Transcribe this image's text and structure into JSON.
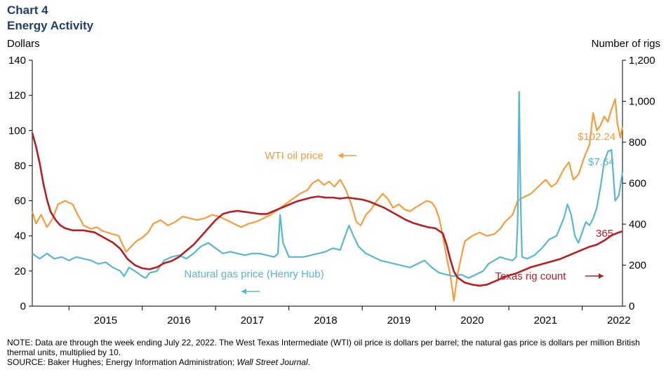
{
  "header": {
    "chart_number": "Chart 4",
    "title": "Energy Activity",
    "left_unit": "Dollars",
    "right_unit": "Number of rigs"
  },
  "footer": {
    "note": "NOTE: Data are through the week ending July 22, 2022. The West Texas Intermediate (WTI) oil price is dollars per barrel; the natural gas price is dollars per million British thermal units, multiplied by 10.",
    "source_prefix": "SOURCE: Baker Hughes; Energy Information  Administration; ",
    "source_italic": "Wall Street Journal",
    "source_suffix": "."
  },
  "chart_data": {
    "type": "line",
    "x_unit": "year",
    "x_range": [
      2014.5,
      2022.55
    ],
    "x_tick_labels": [
      "2015",
      "2016",
      "2017",
      "2018",
      "2019",
      "2020",
      "2021",
      "2022"
    ],
    "y_left": {
      "label": "Dollars",
      "range": [
        0,
        140
      ],
      "ticks": [
        "0",
        "20",
        "40",
        "60",
        "80",
        "100",
        "120",
        "140"
      ]
    },
    "y_right": {
      "label": "Number of rigs",
      "range": [
        0,
        1200
      ],
      "ticks": [
        "0",
        "200",
        "400",
        "600",
        "800",
        "1,000",
        "1,200"
      ]
    },
    "grid": false,
    "series": [
      {
        "name": "WTI oil price",
        "axis": "left",
        "color": "#f59d3d",
        "end_label": "$102.24",
        "arrow": "left",
        "points": [
          [
            2014.5,
            54
          ],
          [
            2014.55,
            47
          ],
          [
            2014.62,
            52
          ],
          [
            2014.7,
            45
          ],
          [
            2014.78,
            50
          ],
          [
            2014.85,
            58
          ],
          [
            2014.95,
            60
          ],
          [
            2015.05,
            58
          ],
          [
            2015.12,
            52
          ],
          [
            2015.2,
            46
          ],
          [
            2015.3,
            44
          ],
          [
            2015.38,
            45
          ],
          [
            2015.45,
            43
          ],
          [
            2015.52,
            42
          ],
          [
            2015.6,
            41
          ],
          [
            2015.68,
            40
          ],
          [
            2015.72,
            36
          ],
          [
            2015.78,
            31
          ],
          [
            2015.85,
            34
          ],
          [
            2015.92,
            37
          ],
          [
            2016.0,
            39
          ],
          [
            2016.08,
            42
          ],
          [
            2016.15,
            47
          ],
          [
            2016.25,
            49
          ],
          [
            2016.35,
            46
          ],
          [
            2016.45,
            48
          ],
          [
            2016.55,
            51
          ],
          [
            2016.65,
            50
          ],
          [
            2016.75,
            49
          ],
          [
            2016.85,
            50
          ],
          [
            2016.95,
            52
          ],
          [
            2017.05,
            51
          ],
          [
            2017.15,
            49
          ],
          [
            2017.25,
            47
          ],
          [
            2017.35,
            45
          ],
          [
            2017.45,
            47
          ],
          [
            2017.55,
            48
          ],
          [
            2017.65,
            50
          ],
          [
            2017.75,
            52
          ],
          [
            2017.85,
            55
          ],
          [
            2017.95,
            58
          ],
          [
            2018.05,
            61
          ],
          [
            2018.15,
            64
          ],
          [
            2018.25,
            66
          ],
          [
            2018.32,
            70
          ],
          [
            2018.4,
            72
          ],
          [
            2018.48,
            69
          ],
          [
            2018.55,
            71
          ],
          [
            2018.62,
            68
          ],
          [
            2018.7,
            72
          ],
          [
            2018.78,
            66
          ],
          [
            2018.85,
            58
          ],
          [
            2018.92,
            48
          ],
          [
            2018.98,
            46
          ],
          [
            2019.05,
            52
          ],
          [
            2019.12,
            55
          ],
          [
            2019.2,
            60
          ],
          [
            2019.28,
            64
          ],
          [
            2019.35,
            61
          ],
          [
            2019.42,
            56
          ],
          [
            2019.5,
            58
          ],
          [
            2019.58,
            55
          ],
          [
            2019.65,
            54
          ],
          [
            2019.72,
            56
          ],
          [
            2019.8,
            58
          ],
          [
            2019.88,
            60
          ],
          [
            2019.95,
            59
          ],
          [
            2020.0,
            56
          ],
          [
            2020.05,
            50
          ],
          [
            2020.1,
            40
          ],
          [
            2020.15,
            28
          ],
          [
            2020.2,
            18
          ],
          [
            2020.25,
            3
          ],
          [
            2020.3,
            18
          ],
          [
            2020.35,
            28
          ],
          [
            2020.4,
            37
          ],
          [
            2020.5,
            40
          ],
          [
            2020.6,
            42
          ],
          [
            2020.7,
            40
          ],
          [
            2020.8,
            41
          ],
          [
            2020.88,
            44
          ],
          [
            2020.95,
            48
          ],
          [
            2021.05,
            52
          ],
          [
            2021.12,
            60
          ],
          [
            2021.2,
            62
          ],
          [
            2021.3,
            64
          ],
          [
            2021.4,
            68
          ],
          [
            2021.5,
            72
          ],
          [
            2021.58,
            68
          ],
          [
            2021.65,
            70
          ],
          [
            2021.75,
            78
          ],
          [
            2021.82,
            82
          ],
          [
            2021.88,
            72
          ],
          [
            2021.95,
            75
          ],
          [
            2022.03,
            85
          ],
          [
            2022.1,
            92
          ],
          [
            2022.15,
            110
          ],
          [
            2022.2,
            100
          ],
          [
            2022.25,
            103
          ],
          [
            2022.3,
            108
          ],
          [
            2022.35,
            105
          ],
          [
            2022.4,
            112
          ],
          [
            2022.45,
            118
          ],
          [
            2022.48,
            104
          ],
          [
            2022.52,
            96
          ],
          [
            2022.55,
            102.24
          ]
        ]
      },
      {
        "name": "Natural gas price (Henry Hub)",
        "axis": "left",
        "color": "#5bb6cf",
        "end_label": "$7.64",
        "arrow": "left",
        "points": [
          [
            2014.5,
            30
          ],
          [
            2014.6,
            27
          ],
          [
            2014.7,
            30
          ],
          [
            2014.8,
            27
          ],
          [
            2014.9,
            28
          ],
          [
            2015.0,
            26
          ],
          [
            2015.1,
            28
          ],
          [
            2015.2,
            27
          ],
          [
            2015.3,
            26
          ],
          [
            2015.4,
            24
          ],
          [
            2015.5,
            25
          ],
          [
            2015.6,
            22
          ],
          [
            2015.7,
            20
          ],
          [
            2015.75,
            17
          ],
          [
            2015.82,
            22
          ],
          [
            2015.9,
            20
          ],
          [
            2016.0,
            17
          ],
          [
            2016.05,
            16
          ],
          [
            2016.1,
            19
          ],
          [
            2016.2,
            20
          ],
          [
            2016.3,
            26
          ],
          [
            2016.4,
            28
          ],
          [
            2016.5,
            29
          ],
          [
            2016.6,
            27
          ],
          [
            2016.7,
            30
          ],
          [
            2016.8,
            34
          ],
          [
            2016.9,
            36
          ],
          [
            2017.0,
            33
          ],
          [
            2017.1,
            30
          ],
          [
            2017.2,
            31
          ],
          [
            2017.3,
            30
          ],
          [
            2017.4,
            29
          ],
          [
            2017.5,
            30
          ],
          [
            2017.6,
            30
          ],
          [
            2017.7,
            29
          ],
          [
            2017.8,
            28
          ],
          [
            2017.85,
            30
          ],
          [
            2017.88,
            52
          ],
          [
            2017.92,
            36
          ],
          [
            2018.0,
            28
          ],
          [
            2018.1,
            28
          ],
          [
            2018.2,
            28
          ],
          [
            2018.3,
            29
          ],
          [
            2018.4,
            30
          ],
          [
            2018.5,
            31
          ],
          [
            2018.6,
            33
          ],
          [
            2018.7,
            32
          ],
          [
            2018.75,
            38
          ],
          [
            2018.82,
            46
          ],
          [
            2018.88,
            40
          ],
          [
            2018.95,
            34
          ],
          [
            2019.05,
            30
          ],
          [
            2019.15,
            28
          ],
          [
            2019.25,
            26
          ],
          [
            2019.35,
            25
          ],
          [
            2019.45,
            24
          ],
          [
            2019.55,
            23
          ],
          [
            2019.65,
            22
          ],
          [
            2019.75,
            24
          ],
          [
            2019.85,
            26
          ],
          [
            2019.95,
            22
          ],
          [
            2020.05,
            19
          ],
          [
            2020.15,
            18
          ],
          [
            2020.25,
            17
          ],
          [
            2020.35,
            18
          ],
          [
            2020.45,
            16
          ],
          [
            2020.55,
            18
          ],
          [
            2020.65,
            20
          ],
          [
            2020.72,
            24
          ],
          [
            2020.8,
            26
          ],
          [
            2020.88,
            28
          ],
          [
            2020.95,
            27
          ],
          [
            2021.05,
            26
          ],
          [
            2021.1,
            28
          ],
          [
            2021.12,
            48
          ],
          [
            2021.14,
            122
          ],
          [
            2021.16,
            60
          ],
          [
            2021.18,
            28
          ],
          [
            2021.25,
            27
          ],
          [
            2021.35,
            29
          ],
          [
            2021.45,
            33
          ],
          [
            2021.55,
            38
          ],
          [
            2021.65,
            40
          ],
          [
            2021.75,
            50
          ],
          [
            2021.8,
            58
          ],
          [
            2021.85,
            52
          ],
          [
            2021.9,
            40
          ],
          [
            2021.95,
            36
          ],
          [
            2022.0,
            42
          ],
          [
            2022.05,
            48
          ],
          [
            2022.1,
            46
          ],
          [
            2022.15,
            50
          ],
          [
            2022.2,
            56
          ],
          [
            2022.25,
            68
          ],
          [
            2022.3,
            82
          ],
          [
            2022.35,
            88
          ],
          [
            2022.4,
            89
          ],
          [
            2022.45,
            60
          ],
          [
            2022.5,
            63
          ],
          [
            2022.55,
            76.4
          ]
        ]
      },
      {
        "name": "Texas rig count",
        "axis": "right",
        "color": "#b51f24",
        "end_label": "365",
        "arrow": "right",
        "points": [
          [
            2014.5,
            845
          ],
          [
            2014.55,
            780
          ],
          [
            2014.6,
            700
          ],
          [
            2014.65,
            600
          ],
          [
            2014.7,
            520
          ],
          [
            2014.75,
            460
          ],
          [
            2014.82,
            420
          ],
          [
            2014.88,
            395
          ],
          [
            2014.95,
            380
          ],
          [
            2015.05,
            370
          ],
          [
            2015.2,
            370
          ],
          [
            2015.35,
            360
          ],
          [
            2015.5,
            330
          ],
          [
            2015.6,
            310
          ],
          [
            2015.7,
            280
          ],
          [
            2015.8,
            230
          ],
          [
            2015.9,
            200
          ],
          [
            2016.0,
            185
          ],
          [
            2016.1,
            180
          ],
          [
            2016.2,
            190
          ],
          [
            2016.3,
            210
          ],
          [
            2016.4,
            220
          ],
          [
            2016.5,
            240
          ],
          [
            2016.6,
            270
          ],
          [
            2016.7,
            300
          ],
          [
            2016.8,
            340
          ],
          [
            2016.9,
            380
          ],
          [
            2017.0,
            420
          ],
          [
            2017.1,
            450
          ],
          [
            2017.2,
            460
          ],
          [
            2017.3,
            465
          ],
          [
            2017.4,
            460
          ],
          [
            2017.5,
            455
          ],
          [
            2017.6,
            450
          ],
          [
            2017.7,
            450
          ],
          [
            2017.8,
            465
          ],
          [
            2017.9,
            480
          ],
          [
            2018.0,
            495
          ],
          [
            2018.1,
            510
          ],
          [
            2018.2,
            520
          ],
          [
            2018.3,
            530
          ],
          [
            2018.4,
            535
          ],
          [
            2018.5,
            530
          ],
          [
            2018.6,
            530
          ],
          [
            2018.7,
            525
          ],
          [
            2018.8,
            530
          ],
          [
            2018.9,
            525
          ],
          [
            2019.0,
            520
          ],
          [
            2019.1,
            510
          ],
          [
            2019.2,
            495
          ],
          [
            2019.3,
            480
          ],
          [
            2019.4,
            460
          ],
          [
            2019.5,
            440
          ],
          [
            2019.6,
            420
          ],
          [
            2019.7,
            405
          ],
          [
            2019.8,
            395
          ],
          [
            2019.9,
            385
          ],
          [
            2020.0,
            380
          ],
          [
            2020.1,
            355
          ],
          [
            2020.15,
            300
          ],
          [
            2020.2,
            230
          ],
          [
            2020.25,
            170
          ],
          [
            2020.3,
            140
          ],
          [
            2020.4,
            115
          ],
          [
            2020.5,
            105
          ],
          [
            2020.6,
            100
          ],
          [
            2020.7,
            105
          ],
          [
            2020.8,
            120
          ],
          [
            2020.9,
            135
          ],
          [
            2021.0,
            150
          ],
          [
            2021.1,
            160
          ],
          [
            2021.2,
            175
          ],
          [
            2021.3,
            190
          ],
          [
            2021.4,
            200
          ],
          [
            2021.5,
            210
          ],
          [
            2021.6,
            220
          ],
          [
            2021.7,
            230
          ],
          [
            2021.8,
            245
          ],
          [
            2021.9,
            260
          ],
          [
            2022.0,
            275
          ],
          [
            2022.1,
            290
          ],
          [
            2022.2,
            300
          ],
          [
            2022.3,
            320
          ],
          [
            2022.4,
            345
          ],
          [
            2022.5,
            360
          ],
          [
            2022.55,
            365
          ]
        ]
      }
    ]
  }
}
